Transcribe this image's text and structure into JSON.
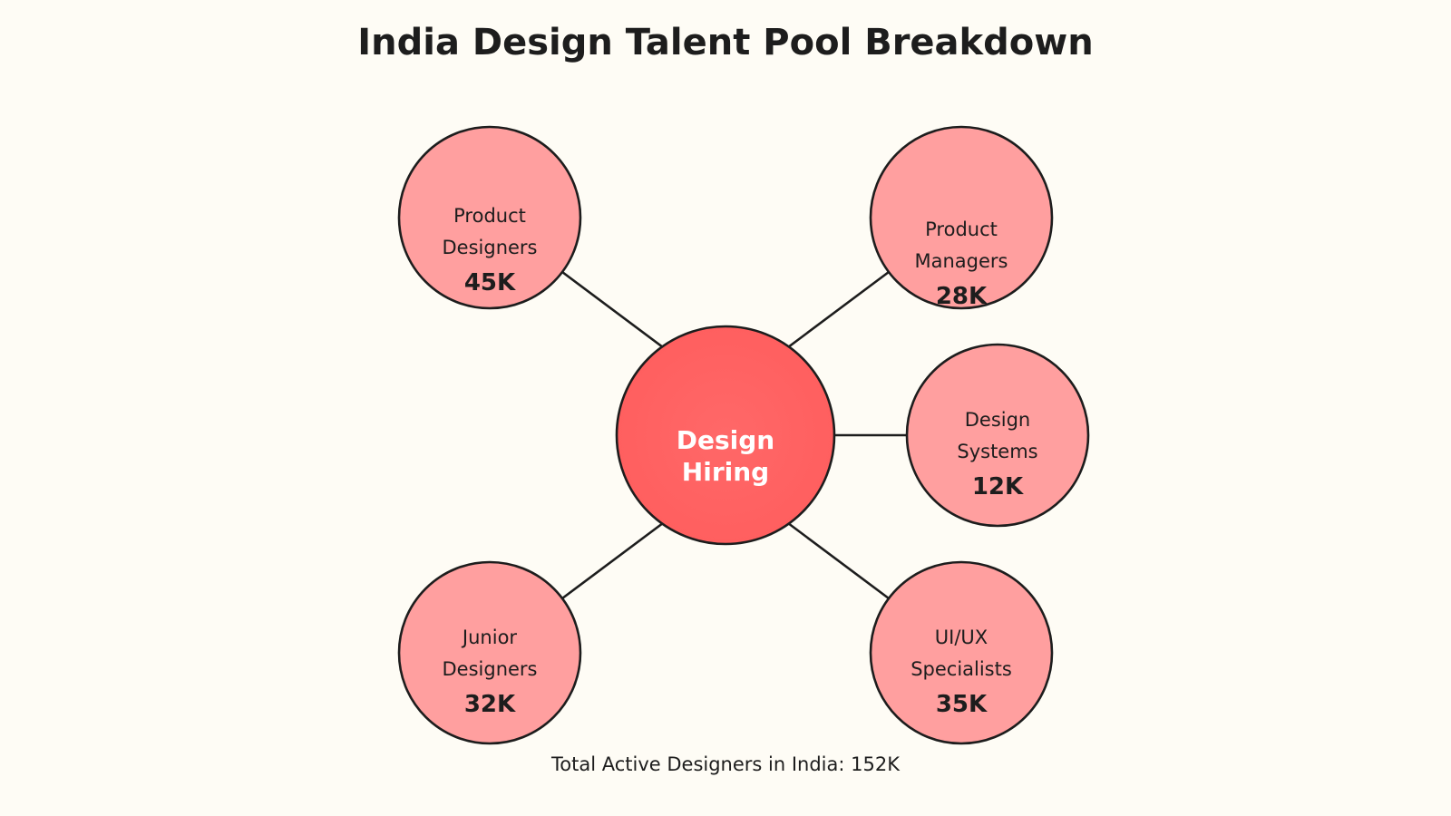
{
  "title": "India Design Talent Pool Breakdown",
  "center": {
    "lines": [
      "Design",
      "Hiring"
    ],
    "color": "#FF6161"
  },
  "node_color": "#FF9F9F",
  "nodes": [
    {
      "lines": [
        "Product",
        "Designers"
      ],
      "value": "45K"
    },
    {
      "lines": [
        "Product",
        "Managers"
      ],
      "value": "28K"
    },
    {
      "lines": [
        "Design",
        "Systems"
      ],
      "value": "12K"
    },
    {
      "lines": [
        "Junior",
        "Designers"
      ],
      "value": "32K"
    },
    {
      "lines": [
        "UI/UX",
        "Specialists"
      ],
      "value": "35K"
    }
  ],
  "footer": "Total Active Designers in India: 152K"
}
